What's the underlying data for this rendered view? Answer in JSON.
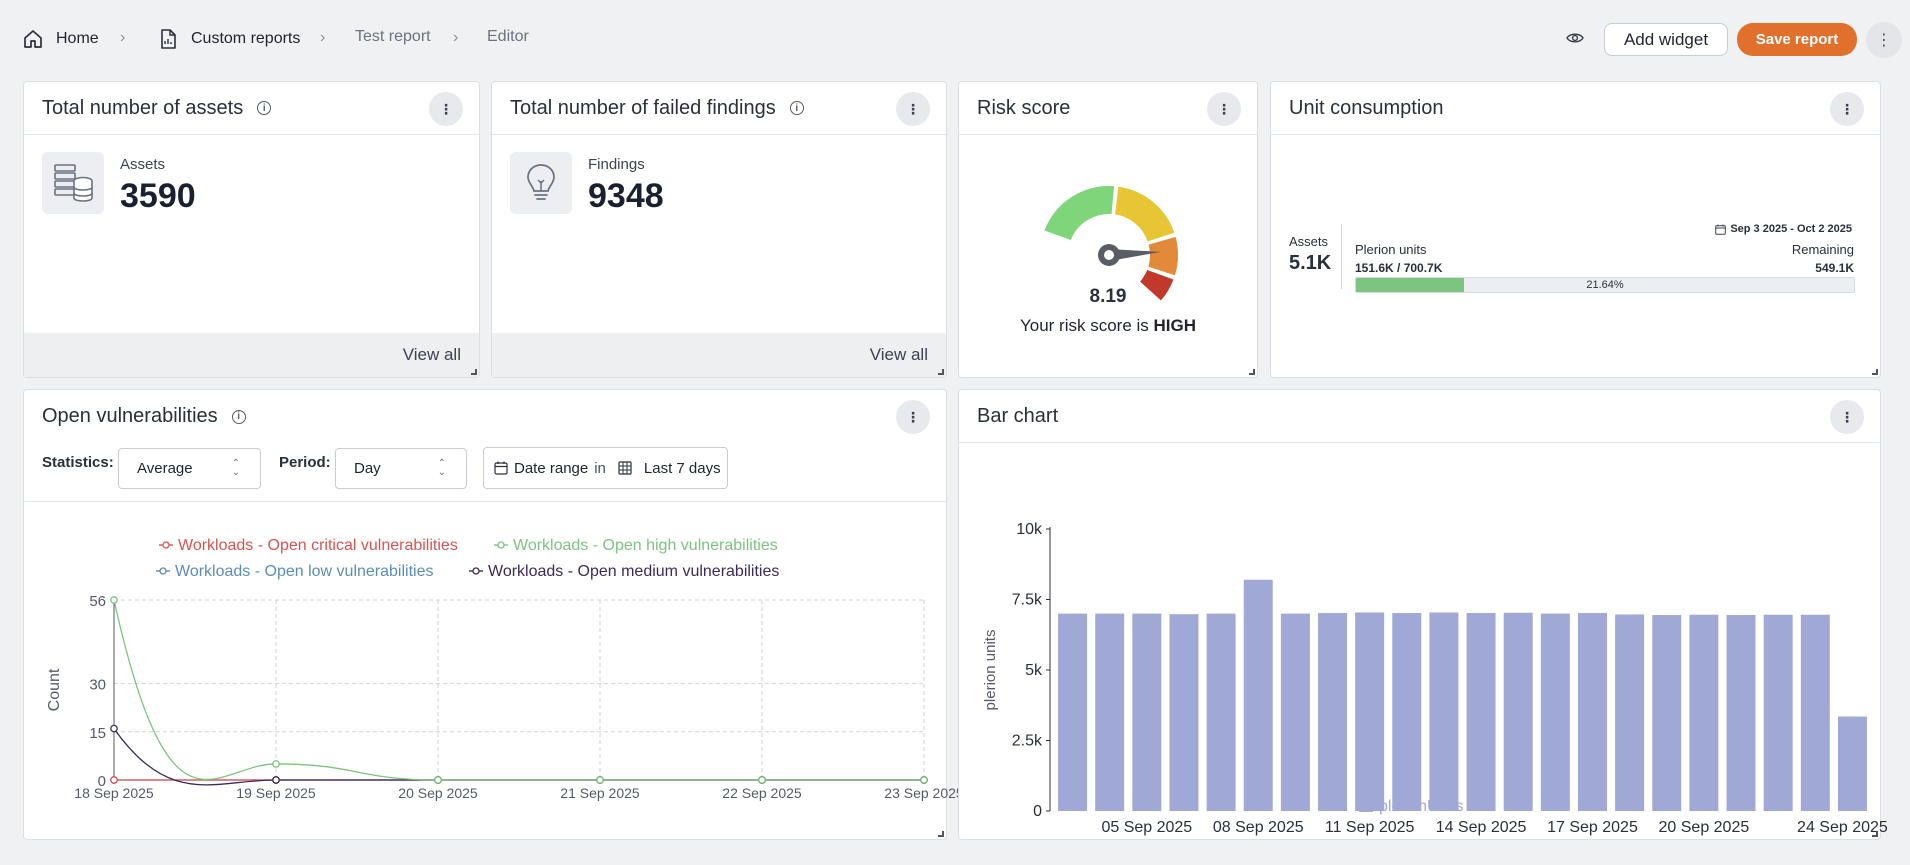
{
  "breadcrumb": {
    "home": "Home",
    "custom_reports": "Custom reports",
    "test_report": "Test report",
    "editor": "Editor"
  },
  "toolbar": {
    "add_widget": "Add widget",
    "save_report": "Save report"
  },
  "widgets": {
    "assets": {
      "title": "Total number of assets",
      "label": "Assets",
      "value": "3590",
      "view_all": "View all"
    },
    "findings": {
      "title": "Total number of failed findings",
      "label": "Findings",
      "value": "9348",
      "view_all": "View all"
    },
    "risk": {
      "title": "Risk score",
      "value": "8.19",
      "text_prefix": "Your risk score is ",
      "level": "HIGH",
      "score_fraction": 0.819
    },
    "units": {
      "title": "Unit consumption",
      "assets_label": "Assets",
      "assets_value": "5.1K",
      "date_range": "Sep 3 2025 - Oct 2 2025",
      "plerion_label": "Plerion units",
      "plerion_value": "151.6K / 700.7K",
      "remaining_label": "Remaining",
      "remaining_value": "549.1K",
      "percent_label": "21.64%",
      "percent": 21.64
    },
    "vulns": {
      "title": "Open vulnerabilities",
      "statistics_label": "Statistics:",
      "statistics_value": "Average",
      "period_label": "Period:",
      "period_value": "Day",
      "date_range_label": "Date range",
      "date_in": "in",
      "date_value": "Last 7 days"
    },
    "bar": {
      "title": "Bar chart"
    }
  },
  "colors": {
    "critical": "#d9534f",
    "high": "#7cc47f",
    "low": "#5b8db8",
    "medium": "#3b2a5a",
    "bar": "#a0a8d6",
    "accent": "#e2702d"
  },
  "chart_data": [
    {
      "type": "line",
      "ylabel": "Count",
      "x": [
        "18 Sep 2025",
        "19 Sep 2025",
        "20 Sep 2025",
        "21 Sep 2025",
        "22 Sep 2025",
        "23 Sep 2025"
      ],
      "yticks": [
        0,
        15,
        30,
        56
      ],
      "ylim": [
        0,
        56
      ],
      "grid": true,
      "legend": "top",
      "series": [
        {
          "name": "Workloads - Open critical vulnerabilities",
          "values": [
            0,
            0,
            0,
            0,
            0,
            0
          ]
        },
        {
          "name": "Workloads - Open high vulnerabilities",
          "values": [
            56,
            5,
            0,
            0,
            0,
            0
          ]
        },
        {
          "name": "Workloads - Open low vulnerabilities",
          "values": [
            0,
            0,
            0,
            0,
            0,
            0
          ]
        },
        {
          "name": "Workloads - Open medium vulnerabilities",
          "values": [
            16,
            0,
            0,
            0,
            0,
            0
          ]
        }
      ]
    },
    {
      "type": "bar",
      "ylabel": "plerion units",
      "ylim": [
        0,
        10000
      ],
      "yticks": [
        "0",
        "2.5k",
        "5k",
        "7.5k",
        "10k"
      ],
      "xtick_labels": [
        "05 Sep 2025",
        "08 Sep 2025",
        "11 Sep 2025",
        "14 Sep 2025",
        "17 Sep 2025",
        "20 Sep 2025",
        "24 Sep 2025"
      ],
      "legend": "bottom",
      "series": [
        {
          "name": "plerionUnits",
          "values": [
            7000,
            7000,
            7000,
            6980,
            7000,
            8200,
            7000,
            7020,
            7040,
            7020,
            7040,
            7020,
            7030,
            7000,
            7020,
            6970,
            6950,
            6960,
            6950,
            6960,
            6960,
            3350
          ]
        }
      ]
    }
  ]
}
